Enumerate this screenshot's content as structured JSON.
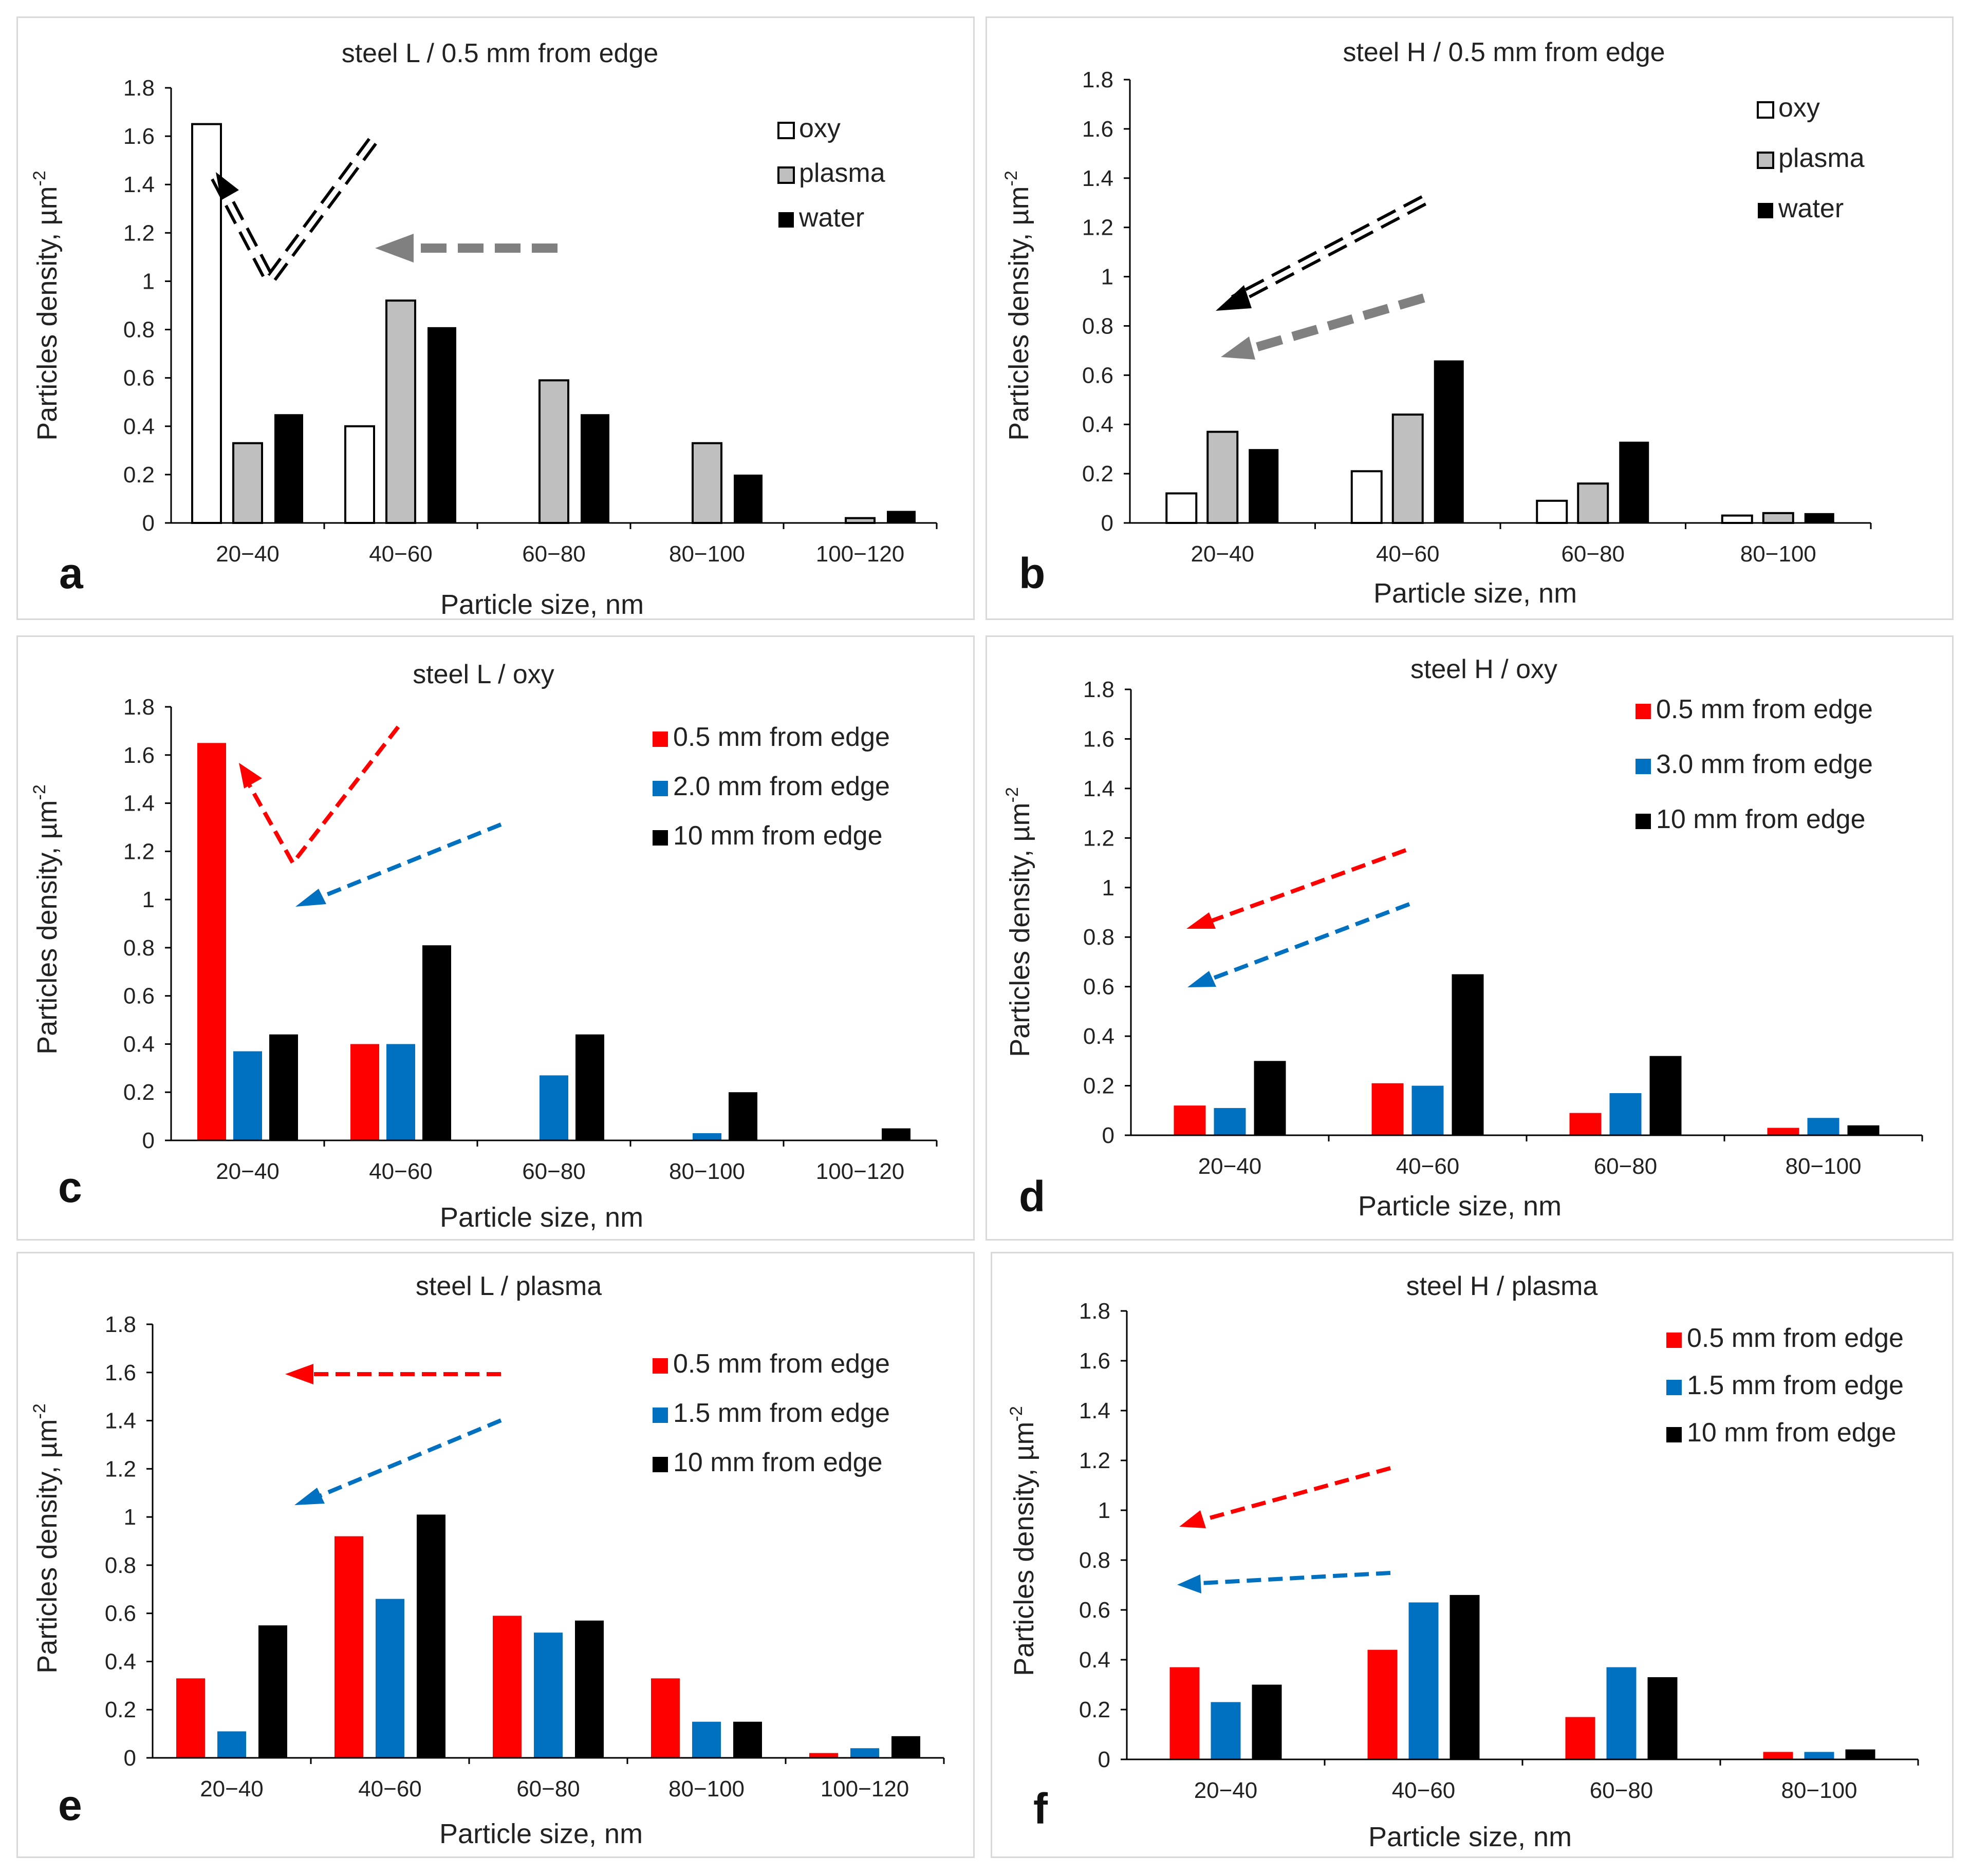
{
  "chart_data": [
    {
      "panel": "a",
      "type": "bar",
      "title": "steel L / 0.5 mm from edge",
      "xlabel": "Particle size, nm",
      "ylabel": "Particles density, µm",
      "ylabel_exp": "-2",
      "ylim": [
        0,
        1.8
      ],
      "ystep": 0.2,
      "categories": [
        "20−40",
        "40−60",
        "60−80",
        "80−100",
        "100−120"
      ],
      "series": [
        {
          "name": "oxy",
          "color": "#ffffff",
          "values": [
            1.65,
            0.4,
            0,
            0,
            0
          ]
        },
        {
          "name": "plasma",
          "color": "#bfbfbf",
          "values": [
            0.33,
            0.92,
            0.59,
            0.33,
            0.02
          ]
        },
        {
          "name": "water",
          "color": "#000000",
          "values": [
            0.45,
            0.81,
            0.45,
            0.2,
            0.05
          ]
        }
      ]
    },
    {
      "panel": "b",
      "type": "bar",
      "title": "steel H / 0.5 mm from edge",
      "xlabel": "Particle size, nm",
      "ylabel": "Particles density, µm",
      "ylabel_exp": "-2",
      "ylim": [
        0,
        1.8
      ],
      "ystep": 0.2,
      "categories": [
        "20−40",
        "40−60",
        "60−80",
        "80−100"
      ],
      "series": [
        {
          "name": "oxy",
          "color": "#ffffff",
          "values": [
            0.12,
            0.21,
            0.09,
            0.03
          ]
        },
        {
          "name": "plasma",
          "color": "#bfbfbf",
          "values": [
            0.37,
            0.44,
            0.16,
            0.04
          ]
        },
        {
          "name": "water",
          "color": "#000000",
          "values": [
            0.3,
            0.66,
            0.33,
            0.04
          ]
        }
      ]
    },
    {
      "panel": "c",
      "type": "bar",
      "title": "steel L / oxy",
      "xlabel": "Particle size, nm",
      "ylabel": "Particles density, µm",
      "ylabel_exp": "-2",
      "ylim": [
        0,
        1.8
      ],
      "ystep": 0.2,
      "categories": [
        "20−40",
        "40−60",
        "60−80",
        "80−100",
        "100−120"
      ],
      "series": [
        {
          "name": "0.5 mm from edge",
          "color": "#ff0000",
          "values": [
            1.65,
            0.4,
            0,
            0,
            0
          ]
        },
        {
          "name": "2.0 mm from edge",
          "color": "#0070c0",
          "values": [
            0.37,
            0.4,
            0.27,
            0.03,
            0
          ]
        },
        {
          "name": "10 mm from edge",
          "color": "#000000",
          "values": [
            0.44,
            0.81,
            0.44,
            0.2,
            0.05
          ]
        }
      ]
    },
    {
      "panel": "d",
      "type": "bar",
      "title": "steel H / oxy",
      "xlabel": "Particle size, nm",
      "ylabel": "Particles density, µm",
      "ylabel_exp": "-2",
      "ylim": [
        0,
        1.8
      ],
      "ystep": 0.2,
      "categories": [
        "20−40",
        "40−60",
        "60−80",
        "80−100"
      ],
      "series": [
        {
          "name": "0.5 mm from edge",
          "color": "#ff0000",
          "values": [
            0.12,
            0.21,
            0.09,
            0.03
          ]
        },
        {
          "name": "3.0 mm from edge",
          "color": "#0070c0",
          "values": [
            0.11,
            0.2,
            0.17,
            0.07
          ]
        },
        {
          "name": "10 mm from edge",
          "color": "#000000",
          "values": [
            0.3,
            0.65,
            0.32,
            0.04
          ]
        }
      ]
    },
    {
      "panel": "e",
      "type": "bar",
      "title": "steel L / plasma",
      "xlabel": "Particle size, nm",
      "ylabel": "Particles density, µm",
      "ylabel_exp": "-2",
      "ylim": [
        0,
        1.8
      ],
      "ystep": 0.2,
      "categories": [
        "20−40",
        "40−60",
        "60−80",
        "80−100",
        "100−120"
      ],
      "series": [
        {
          "name": "0.5 mm from edge",
          "color": "#ff0000",
          "values": [
            0.33,
            0.92,
            0.59,
            0.33,
            0.02
          ]
        },
        {
          "name": "1.5 mm from edge",
          "color": "#0070c0",
          "values": [
            0.11,
            0.66,
            0.52,
            0.15,
            0.04
          ]
        },
        {
          "name": "10 mm from edge",
          "color": "#000000",
          "values": [
            0.55,
            1.01,
            0.57,
            0.15,
            0.09
          ]
        }
      ]
    },
    {
      "panel": "f",
      "type": "bar",
      "title": "steel H / plasma",
      "xlabel": "Particle size, nm",
      "ylabel": "Particles density, µm",
      "ylabel_exp": "-2",
      "ylim": [
        0,
        1.8
      ],
      "ystep": 0.2,
      "categories": [
        "20−40",
        "40−60",
        "60−80",
        "80−100"
      ],
      "series": [
        {
          "name": "0.5 mm from edge",
          "color": "#ff0000",
          "values": [
            0.37,
            0.44,
            0.17,
            0.03
          ]
        },
        {
          "name": "1.5 mm from edge",
          "color": "#0070c0",
          "values": [
            0.23,
            0.63,
            0.37,
            0.03
          ]
        },
        {
          "name": "10 mm from edge",
          "color": "#000000",
          "values": [
            0.3,
            0.66,
            0.33,
            0.04
          ]
        }
      ]
    }
  ],
  "colors": {
    "red": "#ff0000",
    "blue": "#0070c0",
    "black": "#000000",
    "gray": "#bfbfbf",
    "white": "#ffffff",
    "arrow_gray": "#808080"
  }
}
